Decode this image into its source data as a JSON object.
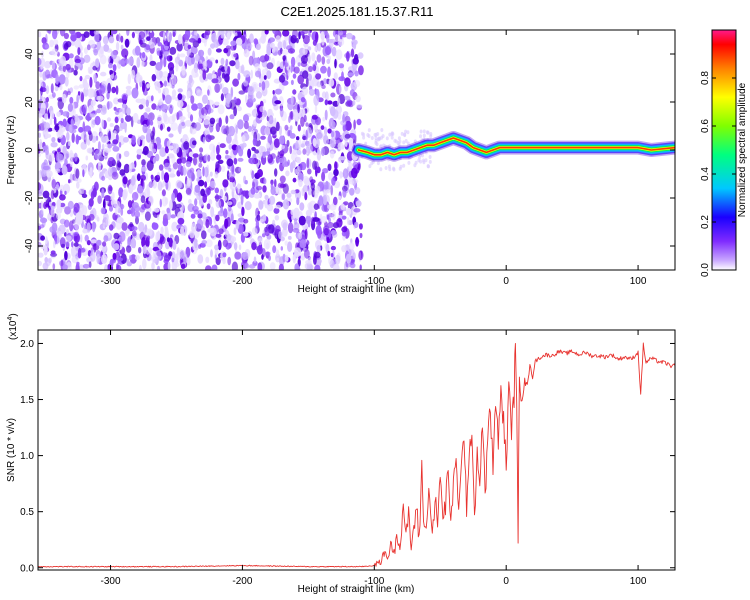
{
  "title": "C2E1.2025.181.15.37.R11",
  "chart_data": [
    {
      "type": "heatmap",
      "name": "spectrogram",
      "xlabel": "Height of straight line (km)",
      "ylabel": "Frequency (Hz)",
      "xlim": [
        -355,
        128
      ],
      "ylim": [
        -50,
        50
      ],
      "xticks": [
        "-300",
        "-200",
        "-100",
        "0",
        "100"
      ],
      "xtick_values": [
        -300,
        -200,
        -100,
        0,
        100
      ],
      "yticks": [
        "40",
        "20",
        "0",
        "-20",
        "-40"
      ],
      "ytick_values": [
        40,
        20,
        0,
        -20,
        -40
      ],
      "noise_region_x": [
        -355,
        -110
      ],
      "signal_ridge": {
        "x": [
          -112,
          -105,
          -100,
          -95,
          -90,
          -85,
          -80,
          -75,
          -70,
          -65,
          -60,
          -55,
          -50,
          -45,
          -40,
          -35,
          -30,
          -25,
          -20,
          -15,
          -10,
          -5,
          0,
          10,
          20,
          40,
          60,
          80,
          90,
          100,
          110,
          128
        ],
        "freq": [
          0,
          -1,
          -2,
          -2,
          -1,
          -2,
          -1,
          -1,
          0,
          1,
          2,
          2,
          3,
          4,
          5,
          4,
          3,
          1,
          0,
          -1,
          0,
          1,
          1,
          1,
          1,
          1,
          1,
          1,
          1,
          1,
          0,
          1
        ]
      },
      "grid": false,
      "colorbar": {
        "label": "Normalized spectral amplitude",
        "ticks": [
          "0.0",
          "0.2",
          "0.4",
          "0.6",
          "0.8"
        ],
        "tick_values": [
          0.0,
          0.2,
          0.4,
          0.6,
          0.8
        ],
        "range": [
          0,
          1
        ],
        "colors": [
          "#ffffff",
          "#9b59ff",
          "#4b00e0",
          "#0000ff",
          "#00ffff",
          "#00ff00",
          "#ffff00",
          "#ff8000",
          "#ff0000",
          "#ff0080"
        ]
      }
    },
    {
      "type": "line",
      "name": "snr",
      "xlabel": "Height of straight line (km)",
      "ylabel": "SNR (10 * v/v)",
      "y_multiplier_base": "(x10",
      "y_multiplier_exp": "4",
      "y_multiplier_close": ")",
      "xlim": [
        -355,
        128
      ],
      "ylim": [
        -0.02,
        2.12
      ],
      "xticks": [
        "-300",
        "-200",
        "-100",
        "0",
        "100"
      ],
      "xtick_values": [
        -300,
        -200,
        -100,
        0,
        100
      ],
      "yticks": [
        "2.0",
        "1.5",
        "1.0",
        "0.5",
        "0.0"
      ],
      "ytick_values": [
        2.0,
        1.5,
        1.0,
        0.5,
        0.0
      ],
      "grid": false,
      "series": [
        {
          "color": "#e8332f",
          "x": [
            -355,
            -300,
            -250,
            -200,
            -150,
            -110,
            -100,
            -95,
            -92,
            -90,
            -87,
            -85,
            -83,
            -80,
            -78,
            -76,
            -74,
            -72,
            -70,
            -68,
            -66,
            -64,
            -62,
            -60,
            -58,
            -56,
            -54,
            -52,
            -50,
            -48,
            -46,
            -44,
            -42,
            -40,
            -38,
            -36,
            -34,
            -32,
            -30,
            -28,
            -26,
            -24,
            -22,
            -20,
            -18,
            -16,
            -14,
            -12,
            -10,
            -8,
            -6,
            -4,
            -2,
            0,
            2,
            4,
            6,
            7,
            8,
            9,
            10,
            12,
            14,
            16,
            18,
            20,
            22,
            25,
            30,
            35,
            40,
            45,
            50,
            55,
            60,
            65,
            70,
            75,
            80,
            85,
            90,
            95,
            100,
            102,
            104,
            106,
            110,
            115,
            120,
            125,
            128
          ],
          "y": [
            0.01,
            0.01,
            0.01,
            0.02,
            0.01,
            0.01,
            0.02,
            0.06,
            0.14,
            0.09,
            0.22,
            0.12,
            0.3,
            0.2,
            0.6,
            0.25,
            0.48,
            0.18,
            0.35,
            0.55,
            0.22,
            0.9,
            0.3,
            0.45,
            0.72,
            0.28,
            0.62,
            0.35,
            0.88,
            0.4,
            0.55,
            0.95,
            0.32,
            0.72,
            1.05,
            0.48,
            0.85,
            1.22,
            0.55,
            0.92,
            1.28,
            0.45,
            1.05,
            0.72,
            1.35,
            0.62,
            1.15,
            1.42,
            0.88,
            1.52,
            1.1,
            1.58,
            1.3,
            0.92,
            1.6,
            1.25,
            1.52,
            2.1,
            1.45,
            0.16,
            1.68,
            1.55,
            1.75,
            1.62,
            1.8,
            1.7,
            1.84,
            1.87,
            1.9,
            1.89,
            1.93,
            1.91,
            1.93,
            1.9,
            1.92,
            1.89,
            1.89,
            1.88,
            1.9,
            1.86,
            1.88,
            1.86,
            1.92,
            1.55,
            1.99,
            1.83,
            1.87,
            1.84,
            1.83,
            1.8,
            1.8
          ]
        }
      ]
    }
  ]
}
